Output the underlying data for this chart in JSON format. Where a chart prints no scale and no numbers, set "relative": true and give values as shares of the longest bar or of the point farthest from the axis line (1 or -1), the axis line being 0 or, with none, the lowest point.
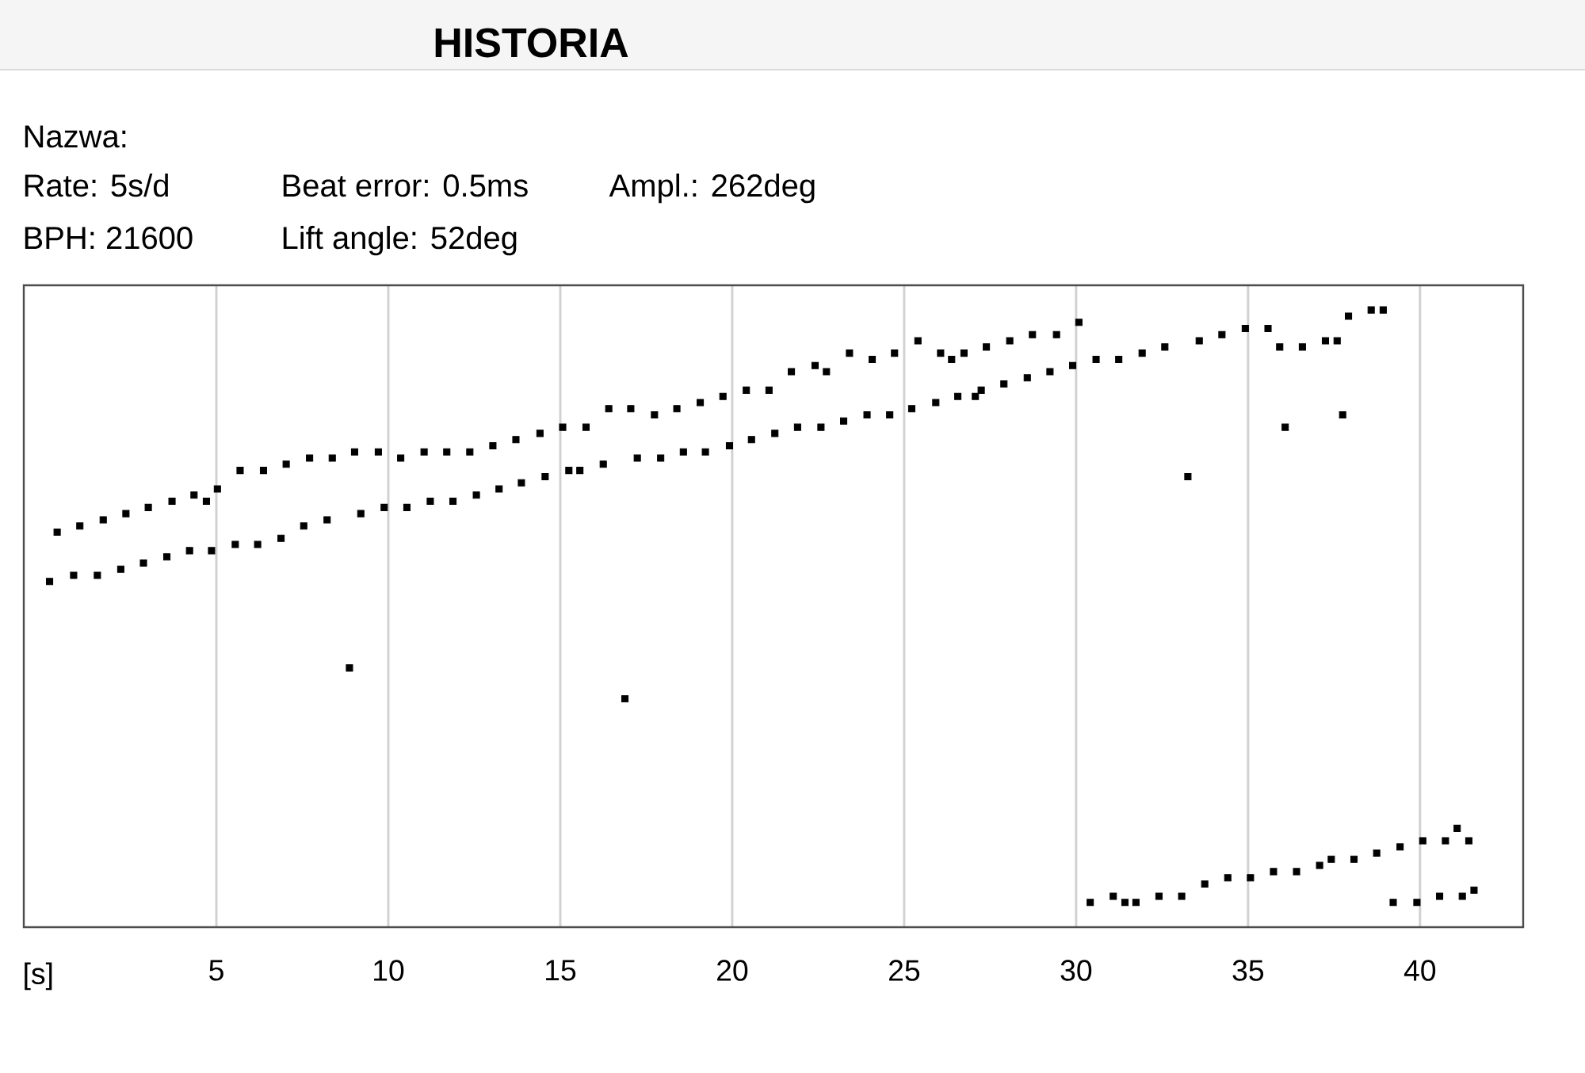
{
  "chart_data": {
    "type": "scatter",
    "title": "HISTORIA",
    "annotations": [
      "Nazwa:",
      "Rate: 5s/d",
      "Beat error: 0.5ms",
      "Ampl.: 262deg",
      "BPH: 21600",
      "Lift angle: 52deg"
    ],
    "xlabel": "[s]",
    "relative": true,
    "marker": "square",
    "grid": "x",
    "xlim": [
      -0.6,
      43
    ],
    "xticks": [
      5,
      10,
      15,
      20,
      25,
      30,
      35,
      40
    ],
    "series": [
      {
        "color": "#000000",
        "x": [
          0.37,
          1.03,
          1.71,
          2.37,
          3.02,
          3.71,
          4.35,
          4.71,
          5.03,
          5.69,
          6.37,
          7.03,
          7.71,
          8.37,
          9.02,
          9.71,
          10.36,
          11.04,
          11.7,
          12.37,
          13.04,
          13.71,
          14.41,
          15.07,
          15.75,
          16.41,
          17.05,
          17.74,
          18.39,
          19.07,
          19.73,
          20.41,
          21.07,
          21.72,
          22.41,
          22.74,
          23.41,
          24.07,
          24.72,
          25.4,
          26.06,
          26.38,
          26.74,
          27.39,
          28.07,
          28.73,
          29.43,
          30.08
        ],
        "values": [
          0.64,
          0.65,
          0.66,
          0.67,
          0.68,
          0.69,
          0.7,
          0.69,
          0.71,
          0.74,
          0.74,
          0.75,
          0.76,
          0.76,
          0.77,
          0.77,
          0.76,
          0.77,
          0.77,
          0.77,
          0.78,
          0.79,
          0.8,
          0.81,
          0.81,
          0.84,
          0.84,
          0.83,
          0.84,
          0.85,
          0.86,
          0.87,
          0.87,
          0.9,
          0.91,
          0.9,
          0.93,
          0.92,
          0.93,
          0.95,
          0.93,
          0.92,
          0.93,
          0.94,
          0.95,
          0.96,
          0.96,
          0.98
        ]
      },
      {
        "color": "#000000",
        "x": [
          0.15,
          0.85,
          1.54,
          2.22,
          2.88,
          3.56,
          4.22,
          4.86,
          5.55,
          6.2,
          6.88,
          7.54,
          8.22,
          9.2,
          9.88,
          10.54,
          11.22,
          11.88,
          12.56,
          13.22,
          13.87,
          14.56,
          15.25,
          15.57,
          16.25,
          17.24,
          17.92,
          18.58,
          19.22,
          19.92,
          20.56,
          21.24,
          21.9,
          22.58,
          23.24,
          23.92,
          24.58,
          25.22,
          25.92,
          26.56,
          27.07,
          27.24,
          27.9,
          28.58,
          29.24,
          29.9,
          30.58,
          31.24,
          31.92,
          32.58,
          33.58,
          34.24,
          34.92,
          35.58,
          35.92,
          36.58,
          37.25,
          37.59,
          37.92,
          38.58,
          38.93
        ],
        "values": [
          0.56,
          0.57,
          0.57,
          0.58,
          0.59,
          0.6,
          0.61,
          0.61,
          0.62,
          0.62,
          0.63,
          0.65,
          0.66,
          0.67,
          0.68,
          0.68,
          0.69,
          0.69,
          0.7,
          0.71,
          0.72,
          0.73,
          0.74,
          0.74,
          0.75,
          0.76,
          0.76,
          0.77,
          0.77,
          0.78,
          0.79,
          0.8,
          0.81,
          0.81,
          0.82,
          0.83,
          0.83,
          0.84,
          0.85,
          0.86,
          0.86,
          0.87,
          0.88,
          0.89,
          0.9,
          0.91,
          0.92,
          0.92,
          0.93,
          0.94,
          0.95,
          0.96,
          0.97,
          0.97,
          0.94,
          0.94,
          0.95,
          0.95,
          0.99,
          1.0,
          1.0
        ]
      },
      {
        "color": "#000000",
        "x": [
          8.87,
          16.88,
          33.25,
          36.08,
          37.75
        ],
        "values": [
          0.42,
          0.37,
          0.73,
          0.81,
          0.83
        ]
      },
      {
        "color": "#000000",
        "x": [
          30.41,
          31.08,
          31.42,
          31.74,
          32.41,
          33.07,
          33.74,
          34.41,
          35.07,
          35.74,
          36.41,
          37.08,
          37.42,
          38.08,
          38.74,
          39.42,
          40.08,
          40.74,
          41.08,
          41.42
        ],
        "values": [
          0.04,
          0.05,
          0.04,
          0.04,
          0.05,
          0.05,
          0.07,
          0.08,
          0.08,
          0.09,
          0.09,
          0.1,
          0.11,
          0.11,
          0.12,
          0.13,
          0.14,
          0.14,
          0.16,
          0.14
        ]
      },
      {
        "color": "#000000",
        "x": [
          39.22,
          39.91,
          40.57,
          41.23,
          41.57
        ],
        "values": [
          0.04,
          0.04,
          0.05,
          0.05,
          0.06
        ]
      }
    ]
  }
}
